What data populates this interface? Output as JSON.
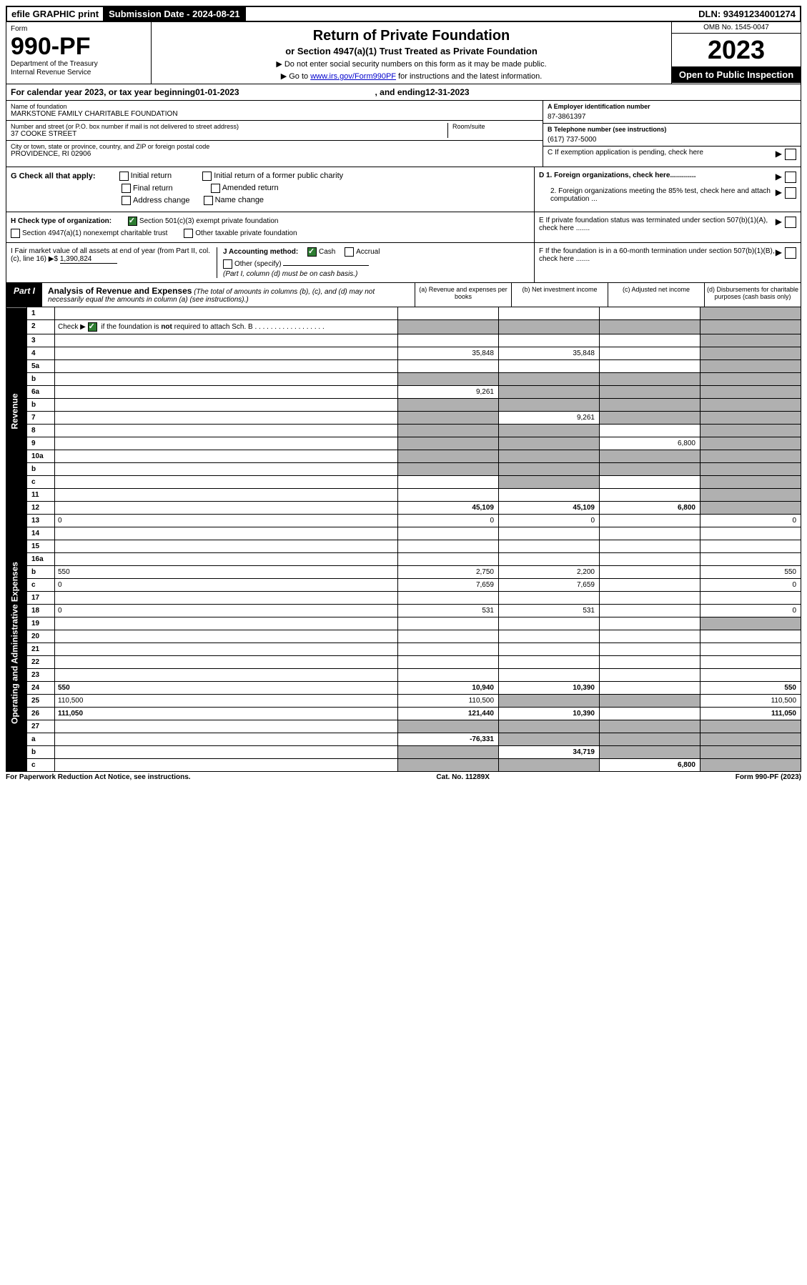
{
  "top_bar": {
    "efile": "efile GRAPHIC print",
    "submission": "Submission Date - 2024-08-21",
    "dln": "DLN: 93491234001274"
  },
  "header": {
    "form_label": "Form",
    "form_number": "990-PF",
    "dept1": "Department of the Treasury",
    "dept2": "Internal Revenue Service",
    "title": "Return of Private Foundation",
    "subtitle": "or Section 4947(a)(1) Trust Treated as Private Foundation",
    "note1": "▶ Do not enter social security numbers on this form as it may be made public.",
    "note2_pre": "▶ Go to ",
    "note2_link": "www.irs.gov/Form990PF",
    "note2_post": " for instructions and the latest information.",
    "omb": "OMB No. 1545-0047",
    "year": "2023",
    "open": "Open to Public Inspection"
  },
  "calendar": {
    "pre": "For calendar year 2023, or tax year beginning ",
    "begin": "01-01-2023",
    "mid": ", and ending ",
    "end": "12-31-2023"
  },
  "ident": {
    "name_label": "Name of foundation",
    "name": "MARKSTONE FAMILY CHARITABLE FOUNDATION",
    "addr_label": "Number and street (or P.O. box number if mail is not delivered to street address)",
    "addr": "37 COOKE STREET",
    "room_label": "Room/suite",
    "city_label": "City or town, state or province, country, and ZIP or foreign postal code",
    "city": "PROVIDENCE, RI  02906",
    "a_label": "A Employer identification number",
    "a_val": "87-3861397",
    "b_label": "B Telephone number (see instructions)",
    "b_val": "(617) 737-5000",
    "c_label": "C If exemption application is pending, check here"
  },
  "g_section": {
    "label": "G Check all that apply:",
    "opts": [
      "Initial return",
      "Final return",
      "Address change",
      "Initial return of a former public charity",
      "Amended return",
      "Name change"
    ]
  },
  "h_section": {
    "label": "H Check type of organization:",
    "opt1": "Section 501(c)(3) exempt private foundation",
    "opt2": "Section 4947(a)(1) nonexempt charitable trust",
    "opt3": "Other taxable private foundation"
  },
  "d_section": {
    "d1": "D 1. Foreign organizations, check here.............",
    "d2": "2. Foreign organizations meeting the 85% test, check here and attach computation ...",
    "e": "E  If private foundation status was terminated under section 507(b)(1)(A), check here .......",
    "f": "F  If the foundation is in a 60-month termination under section 507(b)(1)(B), check here ......."
  },
  "i_section": {
    "label": "I Fair market value of all assets at end of year (from Part II, col. (c), line 16) ▶$ ",
    "val": "1,390,824"
  },
  "j_section": {
    "label": "J Accounting method:",
    "cash": "Cash",
    "accrual": "Accrual",
    "other": "Other (specify)",
    "note": "(Part I, column (d) must be on cash basis.)"
  },
  "part1": {
    "label": "Part I",
    "title": "Analysis of Revenue and Expenses",
    "title_note": "(The total of amounts in columns (b), (c), and (d) may not necessarily equal the amounts in column (a) (see instructions).)",
    "col_a": "(a) Revenue and expenses per books",
    "col_b": "(b) Net investment income",
    "col_c": "(c) Adjusted net income",
    "col_d": "(d) Disbursements for charitable purposes (cash basis only)"
  },
  "side_labels": {
    "revenue": "Revenue",
    "expenses": "Operating and Administrative Expenses"
  },
  "rows": [
    {
      "n": "1",
      "d": "",
      "a": "",
      "b": "",
      "c": "",
      "shade": [
        "d"
      ]
    },
    {
      "n": "2",
      "d": "",
      "a": "",
      "b": "",
      "c": "",
      "shade": [
        "a",
        "b",
        "c",
        "d"
      ],
      "check": true
    },
    {
      "n": "3",
      "d": "",
      "a": "",
      "b": "",
      "c": "",
      "shade": [
        "d"
      ]
    },
    {
      "n": "4",
      "d": "",
      "a": "35,848",
      "b": "35,848",
      "c": "",
      "shade": [
        "d"
      ]
    },
    {
      "n": "5a",
      "d": "",
      "a": "",
      "b": "",
      "c": "",
      "shade": [
        "d"
      ]
    },
    {
      "n": "b",
      "d": "",
      "a": "",
      "b": "",
      "c": "",
      "shade": [
        "a",
        "b",
        "c",
        "d"
      ]
    },
    {
      "n": "6a",
      "d": "",
      "a": "9,261",
      "b": "",
      "c": "",
      "shade": [
        "b",
        "c",
        "d"
      ]
    },
    {
      "n": "b",
      "d": "",
      "a": "",
      "b": "",
      "c": "",
      "shade": [
        "a",
        "b",
        "c",
        "d"
      ]
    },
    {
      "n": "7",
      "d": "",
      "a": "",
      "b": "9,261",
      "c": "",
      "shade": [
        "a",
        "c",
        "d"
      ]
    },
    {
      "n": "8",
      "d": "",
      "a": "",
      "b": "",
      "c": "",
      "shade": [
        "a",
        "b",
        "d"
      ]
    },
    {
      "n": "9",
      "d": "",
      "a": "",
      "b": "",
      "c": "6,800",
      "shade": [
        "a",
        "b",
        "d"
      ]
    },
    {
      "n": "10a",
      "d": "",
      "a": "",
      "b": "",
      "c": "",
      "shade": [
        "a",
        "b",
        "c",
        "d"
      ]
    },
    {
      "n": "b",
      "d": "",
      "a": "",
      "b": "",
      "c": "",
      "shade": [
        "a",
        "b",
        "c",
        "d"
      ]
    },
    {
      "n": "c",
      "d": "",
      "a": "",
      "b": "",
      "c": "",
      "shade": [
        "b",
        "d"
      ]
    },
    {
      "n": "11",
      "d": "",
      "a": "",
      "b": "",
      "c": "",
      "shade": [
        "d"
      ]
    },
    {
      "n": "12",
      "d": "",
      "a": "45,109",
      "b": "45,109",
      "c": "6,800",
      "shade": [
        "d"
      ],
      "bold": true
    },
    {
      "n": "13",
      "d": "0",
      "a": "0",
      "b": "0",
      "c": ""
    },
    {
      "n": "14",
      "d": "",
      "a": "",
      "b": "",
      "c": ""
    },
    {
      "n": "15",
      "d": "",
      "a": "",
      "b": "",
      "c": ""
    },
    {
      "n": "16a",
      "d": "",
      "a": "",
      "b": "",
      "c": ""
    },
    {
      "n": "b",
      "d": "550",
      "a": "2,750",
      "b": "2,200",
      "c": ""
    },
    {
      "n": "c",
      "d": "0",
      "a": "7,659",
      "b": "7,659",
      "c": ""
    },
    {
      "n": "17",
      "d": "",
      "a": "",
      "b": "",
      "c": ""
    },
    {
      "n": "18",
      "d": "0",
      "a": "531",
      "b": "531",
      "c": ""
    },
    {
      "n": "19",
      "d": "",
      "a": "",
      "b": "",
      "c": "",
      "shade": [
        "d"
      ]
    },
    {
      "n": "20",
      "d": "",
      "a": "",
      "b": "",
      "c": ""
    },
    {
      "n": "21",
      "d": "",
      "a": "",
      "b": "",
      "c": ""
    },
    {
      "n": "22",
      "d": "",
      "a": "",
      "b": "",
      "c": ""
    },
    {
      "n": "23",
      "d": "",
      "a": "",
      "b": "",
      "c": ""
    },
    {
      "n": "24",
      "d": "550",
      "a": "10,940",
      "b": "10,390",
      "c": "",
      "bold": true
    },
    {
      "n": "25",
      "d": "110,500",
      "a": "110,500",
      "b": "",
      "c": "",
      "shade": [
        "b",
        "c"
      ]
    },
    {
      "n": "26",
      "d": "111,050",
      "a": "121,440",
      "b": "10,390",
      "c": "",
      "bold": true
    },
    {
      "n": "27",
      "d": "",
      "a": "",
      "b": "",
      "c": "",
      "shade": [
        "a",
        "b",
        "c",
        "d"
      ]
    },
    {
      "n": "a",
      "d": "",
      "a": "-76,331",
      "b": "",
      "c": "",
      "shade": [
        "b",
        "c",
        "d"
      ],
      "bold": true
    },
    {
      "n": "b",
      "d": "",
      "a": "",
      "b": "34,719",
      "c": "",
      "shade": [
        "a",
        "c",
        "d"
      ],
      "bold": true
    },
    {
      "n": "c",
      "d": "",
      "a": "",
      "b": "",
      "c": "6,800",
      "shade": [
        "a",
        "b",
        "d"
      ],
      "bold": true
    }
  ],
  "footer": {
    "left": "For Paperwork Reduction Act Notice, see instructions.",
    "mid": "Cat. No. 11289X",
    "right": "Form 990-PF (2023)"
  }
}
